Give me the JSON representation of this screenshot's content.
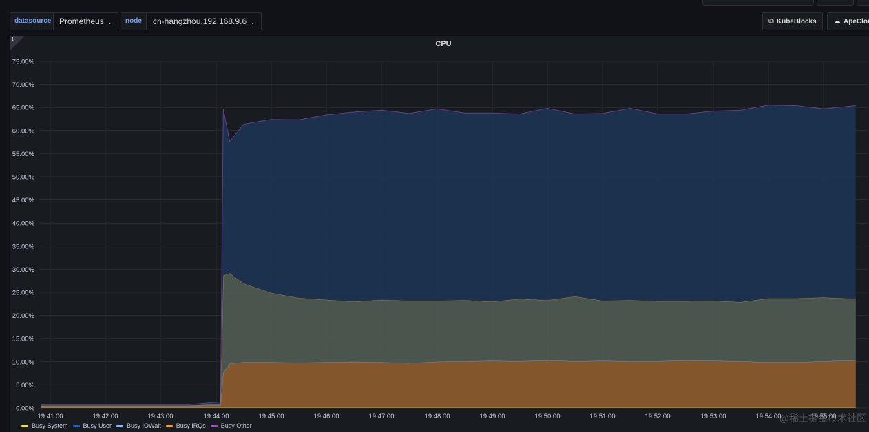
{
  "variables": {
    "datasource": {
      "label": "datasource",
      "value": "Prometheus"
    },
    "node": {
      "label": "node",
      "value": "cn-hangzhou.192.168.9.6"
    }
  },
  "links": [
    {
      "label": "KubeBlocks",
      "icon": "external-link-icon"
    },
    {
      "label": "ApeCloud",
      "icon": "cloud-icon"
    }
  ],
  "panel": {
    "title": "CPU"
  },
  "chart_data": {
    "type": "area",
    "stacked": true,
    "title": "CPU",
    "xlabel": "",
    "ylabel": "",
    "ylim": [
      0,
      75
    ],
    "y_unit": "%",
    "y_ticks": [
      "0.00%",
      "5.00%",
      "10.00%",
      "15.00%",
      "20.00%",
      "25.00%",
      "30.00%",
      "35.00%",
      "40.00%",
      "45.00%",
      "50.00%",
      "55.00%",
      "60.00%",
      "65.00%",
      "70.00%",
      "75.00%"
    ],
    "x_ticks": [
      "19:41:00",
      "19:42:00",
      "19:43:00",
      "19:44:00",
      "19:45:00",
      "19:46:00",
      "19:47:00",
      "19:48:00",
      "19:49:00",
      "19:50:00",
      "19:51:00",
      "19:52:00",
      "19:53:00",
      "19:54:00",
      "19:55:00"
    ],
    "x": [
      "19:40:50",
      "19:41:30",
      "19:42:30",
      "19:43:30",
      "19:44:05",
      "19:44:08",
      "19:44:15",
      "19:44:30",
      "19:45:00",
      "19:45:30",
      "19:46:00",
      "19:46:30",
      "19:47:00",
      "19:47:30",
      "19:48:00",
      "19:48:30",
      "19:49:00",
      "19:49:30",
      "19:50:00",
      "19:50:30",
      "19:51:00",
      "19:51:30",
      "19:52:00",
      "19:52:30",
      "19:53:00",
      "19:53:30",
      "19:54:00",
      "19:54:30",
      "19:55:00",
      "19:55:35"
    ],
    "series": [
      {
        "name": "Busy System",
        "color": "#fade2a",
        "values": [
          0.1,
          0.1,
          0.1,
          0.1,
          0.1,
          0.1,
          0.1,
          0.1,
          0.1,
          0.1,
          0.1,
          0.1,
          0.1,
          0.1,
          0.1,
          0.1,
          0.1,
          0.1,
          0.1,
          0.1,
          0.1,
          0.1,
          0.1,
          0.1,
          0.1,
          0.1,
          0.1,
          0.1,
          0.1,
          0.1
        ]
      },
      {
        "name": "Busy User",
        "color": "#1f60c4",
        "values": [
          0.3,
          0.3,
          0.3,
          0.3,
          0.5,
          7.5,
          9.5,
          9.8,
          9.8,
          9.7,
          9.8,
          9.9,
          9.8,
          9.6,
          9.9,
          10.0,
          10.1,
          10.0,
          10.2,
          10.0,
          10.1,
          10.0,
          10.0,
          10.2,
          10.1,
          10.0,
          9.8,
          9.8,
          10.0,
          10.2
        ]
      },
      {
        "name": "Busy IOWait",
        "color": "#8ab8ff",
        "values": [
          0.0,
          0.0,
          0.0,
          0.0,
          0.0,
          0.0,
          0.0,
          0.0,
          0.0,
          0.0,
          0.0,
          0.0,
          0.0,
          0.0,
          0.0,
          0.0,
          0.0,
          0.0,
          0.0,
          0.0,
          0.0,
          0.0,
          0.0,
          0.0,
          0.0,
          0.0,
          0.0,
          0.0,
          0.0,
          0.0
        ]
      },
      {
        "name": "Busy IRQs",
        "color": "#ff9830",
        "values": [
          0.1,
          0.1,
          0.1,
          0.1,
          0.2,
          21.0,
          19.5,
          17.0,
          15.0,
          14.0,
          13.5,
          13.0,
          13.5,
          13.5,
          13.2,
          13.2,
          12.8,
          13.5,
          13.0,
          14.0,
          13.0,
          13.2,
          13.0,
          12.8,
          13.0,
          12.8,
          13.8,
          13.8,
          13.8,
          13.3
        ]
      },
      {
        "name": "Busy Other",
        "color": "#a352cc",
        "values": [
          0.2,
          0.2,
          0.2,
          0.2,
          0.5,
          36.0,
          28.5,
          34.5,
          37.5,
          38.5,
          40.0,
          41.0,
          41.0,
          40.5,
          41.5,
          40.5,
          40.8,
          40.0,
          41.5,
          39.5,
          40.5,
          41.5,
          40.5,
          40.5,
          41.0,
          41.5,
          41.8,
          41.7,
          40.8,
          41.8
        ]
      }
    ],
    "grid": true,
    "legend_position": "bottom"
  },
  "watermark": "@稀土掘金技术社区"
}
